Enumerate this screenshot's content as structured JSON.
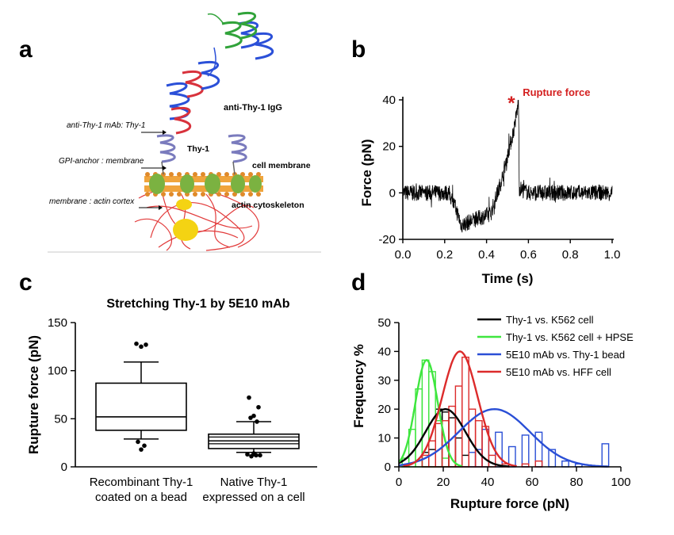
{
  "panels": {
    "a": {
      "letter": "a",
      "labels": {
        "igg": "anti-Thy-1 IgG",
        "mab": "anti-Thy-1 mAb: Thy-1",
        "thy1": "Thy-1",
        "gpi": "GPI-anchor : membrane",
        "cell_membrane": "cell membrane",
        "membrane_actin": "membrane : actin cortex",
        "actin": "actin cytoskeleton"
      }
    },
    "b": {
      "letter": "b",
      "annotation": "Rupture force",
      "marker": "*"
    },
    "c": {
      "letter": "c"
    },
    "d": {
      "letter": "d"
    }
  },
  "chart_data": [
    {
      "panel": "b",
      "type": "line",
      "title": "",
      "xlabel": "Time (s)",
      "ylabel": "Force (pN)",
      "xlim": [
        0,
        1.0
      ],
      "ylim": [
        -20,
        40
      ],
      "xticks": [
        "0.0",
        "0.2",
        "0.4",
        "0.6",
        "0.8",
        "1.0"
      ],
      "yticks": [
        "-20",
        "0",
        "20",
        "40"
      ],
      "trace_keypoints": {
        "t": [
          0.0,
          0.22,
          0.25,
          0.28,
          0.33,
          0.42,
          0.47,
          0.53,
          0.553,
          0.556,
          0.6,
          0.8,
          1.0
        ],
        "force": [
          0,
          0,
          -6,
          -14,
          -12,
          -9,
          5,
          27,
          39,
          2,
          0,
          0,
          0
        ]
      },
      "series_color": "#000000",
      "annotation": {
        "text": "Rupture force",
        "color": "#d42020",
        "t": 0.55,
        "force": 40
      }
    },
    {
      "panel": "c",
      "type": "box",
      "title": "Stretching Thy-1 by 5E10 mAb",
      "xlabel": "",
      "ylabel": "Rupture force (pN)",
      "ylim": [
        0,
        150
      ],
      "yticks": [
        "0",
        "50",
        "100",
        "150"
      ],
      "categories": [
        [
          "Recombinant Thy-1",
          "coated on a bead"
        ],
        [
          "Native Thy-1",
          "expressed on a cell"
        ]
      ],
      "boxes": [
        {
          "whisker_low": 29,
          "q1": 38,
          "median": 52,
          "q3": 87,
          "whisker_high": 109,
          "outliers": [
            128,
            127,
            125,
            26,
            22,
            18
          ]
        },
        {
          "whisker_low": 15,
          "q1": 19,
          "median": 27,
          "q3": 34,
          "whisker_high": 47,
          "inner_lines": [
            24,
            31
          ],
          "outliers": [
            72,
            62,
            53,
            51,
            47,
            14,
            13,
            12,
            11,
            12,
            13
          ]
        }
      ]
    },
    {
      "panel": "d",
      "type": "histogram",
      "title": "",
      "xlabel": "Rupture force (pN)",
      "ylabel": "Frequency %",
      "xlim": [
        0,
        100
      ],
      "ylim": [
        0,
        50
      ],
      "xticks": [
        "0",
        "20",
        "40",
        "60",
        "80",
        "100"
      ],
      "yticks": [
        "0",
        "10",
        "20",
        "30",
        "40",
        "50"
      ],
      "legend": "top-right",
      "series": [
        {
          "name": "Thy-1 vs. K562 cell",
          "color": "#000000",
          "bin_width": 3,
          "bins": [
            [
              12,
              5
            ],
            [
              15,
              6
            ],
            [
              18,
              20
            ],
            [
              21,
              19
            ],
            [
              24,
              17
            ],
            [
              27,
              10
            ],
            [
              30,
              4
            ]
          ],
          "fit": {
            "mean": 21,
            "sd": 9,
            "peak": 20
          }
        },
        {
          "name": "Thy-1 vs. K562 cell + HPSE",
          "color": "#3ee63e",
          "bin_width": 3,
          "bins": [
            [
              3,
              3
            ],
            [
              6,
              13
            ],
            [
              9,
              27
            ],
            [
              12,
              37
            ],
            [
              15,
              33
            ],
            [
              18,
              16
            ],
            [
              21,
              3
            ]
          ],
          "fit": {
            "mean": 12.5,
            "sd": 5,
            "peak": 37
          }
        },
        {
          "name": "5E10 mAb vs. Thy-1 bead",
          "color": "#2a4fd6",
          "bin_width": 3,
          "bins": [
            [
              33,
              5
            ],
            [
              36,
              6
            ],
            [
              39,
              13
            ],
            [
              45,
              12
            ],
            [
              51,
              7
            ],
            [
              57,
              11
            ],
            [
              63,
              12
            ],
            [
              69,
              6
            ],
            [
              75,
              2
            ],
            [
              81,
              1
            ],
            [
              93,
              8
            ]
          ],
          "fit": {
            "mean": 43,
            "sd": 16,
            "peak": 20
          }
        },
        {
          "name": "5E10 mAb vs. HFF cell",
          "color": "#dc2b2b",
          "bin_width": 3,
          "bins": [
            [
              12,
              4
            ],
            [
              15,
              9
            ],
            [
              18,
              15
            ],
            [
              21,
              16
            ],
            [
              24,
              21
            ],
            [
              27,
              28
            ],
            [
              30,
              38
            ],
            [
              33,
              20
            ],
            [
              36,
              16
            ],
            [
              39,
              14
            ],
            [
              42,
              4
            ],
            [
              48,
              1
            ],
            [
              57,
              1
            ],
            [
              63,
              2
            ]
          ],
          "fit": {
            "mean": 27.5,
            "sd": 8,
            "peak": 40
          }
        }
      ]
    }
  ]
}
